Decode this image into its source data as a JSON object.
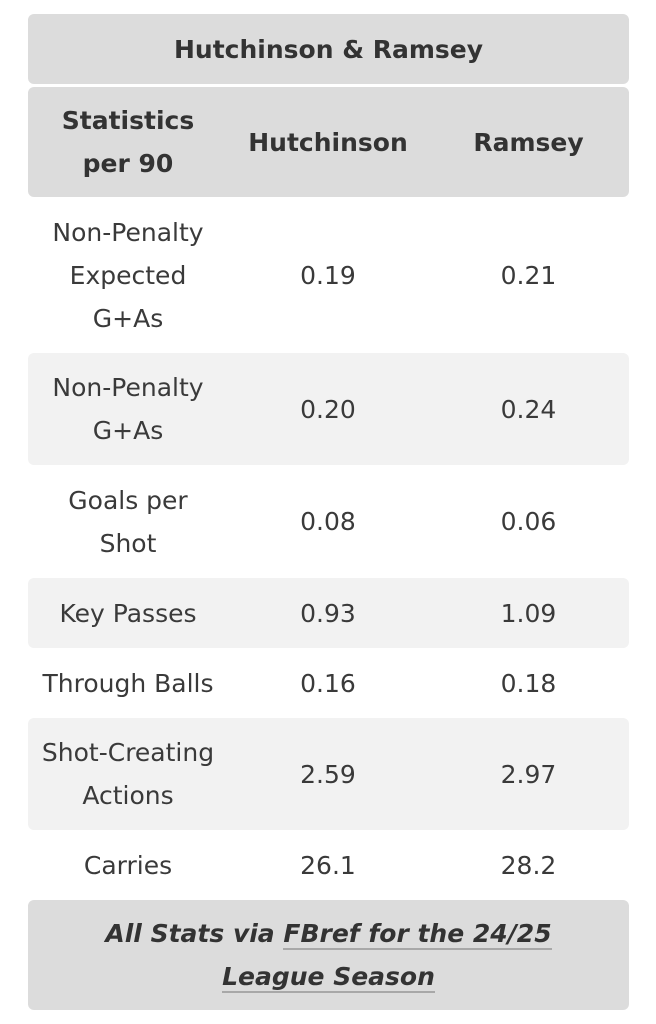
{
  "table": {
    "title": "Hutchinson & Ramsey",
    "headers": {
      "stat": [
        "Statistics",
        "per 90"
      ],
      "player1": "Hutchinson",
      "player2": "Ramsey"
    },
    "rows": [
      {
        "label": [
          "Non-Penalty",
          "Expected",
          "G+As"
        ],
        "p1": "0.19",
        "p2": "0.21"
      },
      {
        "label": [
          "Non-Penalty",
          "G+As"
        ],
        "p1": "0.20",
        "p2": "0.24"
      },
      {
        "label": [
          "Goals per",
          "Shot"
        ],
        "p1": "0.08",
        "p2": "0.06"
      },
      {
        "label": [
          "Key Passes"
        ],
        "p1": "0.93",
        "p2": "1.09"
      },
      {
        "label": [
          "Through Balls"
        ],
        "p1": "0.16",
        "p2": "0.18"
      },
      {
        "label": [
          "Shot-Creating",
          "Actions"
        ],
        "p1": "2.59",
        "p2": "2.97"
      },
      {
        "label": [
          "Carries"
        ],
        "p1": "26.1",
        "p2": "28.2"
      }
    ],
    "footer": {
      "prefix": "All Stats via ",
      "link_text": "FBref for the 24/25 League Season"
    }
  }
}
